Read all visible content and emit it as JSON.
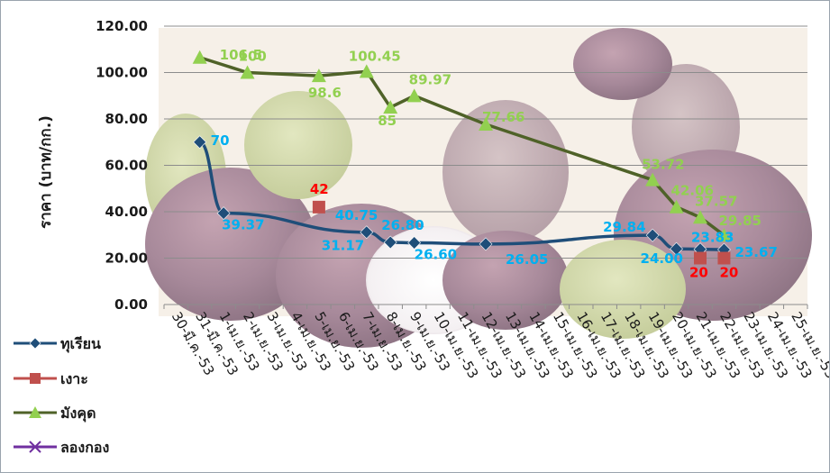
{
  "chart_data": {
    "type": "line",
    "title": "",
    "ylabel": "ราคา  (บาท/กก.)",
    "xlabel": "",
    "ylim": [
      0,
      120
    ],
    "y_ticks": [
      "0.00",
      "20.00",
      "40.00",
      "60.00",
      "80.00",
      "100.00",
      "120.00"
    ],
    "categories": [
      "30-มี.ค.-53",
      "31-มี.ค.-53",
      "1-เม.ย.-53",
      "2-เม.ย.-53",
      "3-เม.ย.-53",
      "4-เม.ย.-53",
      "5-เม.ย.-53",
      "6-เม.ย.-53",
      "7-เม.ย.-53",
      "8-เม.ย.-53",
      "9-เม.ย.-53",
      "10-เม.ย.-53",
      "11-เม.ย.-53",
      "12-เม.ย.-53",
      "13-เม.ย.-53",
      "14-เม.ย.-53",
      "15-เม.ย.-53",
      "16-เม.ย.-53",
      "17-เม.ย.-53",
      "18-เม.ย.-53",
      "19-เม.ย.-53",
      "20-เม.ย.-53",
      "21-เม.ย.-53",
      "22-เม.ย.-53",
      "23-เม.ย.-53",
      "24-เม.ย.-53",
      "25-เม.ย.-53"
    ],
    "grid": true,
    "legend_position": "left",
    "background": "mangosteen photo",
    "series": [
      {
        "name": "ทุเรียน",
        "color": "#1f4e79",
        "label_color": "#00b0f0",
        "marker": "diamond",
        "points": [
          {
            "x": "31-มี.ค.-53",
            "y": 70,
            "label": "70"
          },
          {
            "x": "1-เม.ย.-53",
            "y": 39.37,
            "label": "39.37"
          },
          {
            "x": "7-เม.ย.-53",
            "y": 31.17,
            "label": "31.17"
          },
          {
            "x": "8-เม.ย.-53",
            "y": 26.8,
            "label": "26.80"
          },
          {
            "x": "9-เม.ย.-53",
            "y": 26.6,
            "label": "26.60"
          },
          {
            "x": "12-เม.ย.-53",
            "y": 26.05,
            "label": "26.05"
          },
          {
            "x": "19-เม.ย.-53",
            "y": 29.84,
            "label": "29.84"
          },
          {
            "x": "20-เม.ย.-53",
            "y": 24.0,
            "label": "24.00"
          },
          {
            "x": "21-เม.ย.-53",
            "y": 23.83,
            "label": "23.83"
          },
          {
            "x": "22-เม.ย.-53",
            "y": 23.67,
            "label": "23.67"
          }
        ],
        "extra_labels": [
          {
            "label": "40.75"
          }
        ]
      },
      {
        "name": "เงาะ",
        "color": "#c0504d",
        "label_color": "#ff0000",
        "marker": "square",
        "points": [
          {
            "x": "5-เม.ย.-53",
            "y": 42,
            "label": "42"
          },
          {
            "x": "21-เม.ย.-53",
            "y": 20,
            "label": "20"
          },
          {
            "x": "22-เม.ย.-53",
            "y": 20,
            "label": "20"
          }
        ]
      },
      {
        "name": "มังคุด",
        "color": "#4f6228",
        "label_color": "#92d050",
        "marker": "triangle",
        "points": [
          {
            "x": "31-มี.ค.-53",
            "y": 106.5,
            "label": "106.5"
          },
          {
            "x": "2-เม.ย.-53",
            "y": 100,
            "label": "100"
          },
          {
            "x": "5-เม.ย.-53",
            "y": 98.6,
            "label": "98.6"
          },
          {
            "x": "7-เม.ย.-53",
            "y": 100.45,
            "label": "100.45"
          },
          {
            "x": "8-เม.ย.-53",
            "y": 85,
            "label": "85"
          },
          {
            "x": "9-เม.ย.-53",
            "y": 89.97,
            "label": "89.97"
          },
          {
            "x": "12-เม.ย.-53",
            "y": 77.66,
            "label": "77.66"
          },
          {
            "x": "19-เม.ย.-53",
            "y": 53.72,
            "label": "53.72"
          },
          {
            "x": "20-เม.ย.-53",
            "y": 42.06,
            "label": "42.06"
          },
          {
            "x": "21-เม.ย.-53",
            "y": 37.57,
            "label": "37.57"
          },
          {
            "x": "22-เม.ย.-53",
            "y": 29.85,
            "label": "29.85"
          }
        ]
      },
      {
        "name": "ลองกอง",
        "color": "#7030a0",
        "label_color": "#7030a0",
        "marker": "x",
        "points": []
      }
    ]
  }
}
